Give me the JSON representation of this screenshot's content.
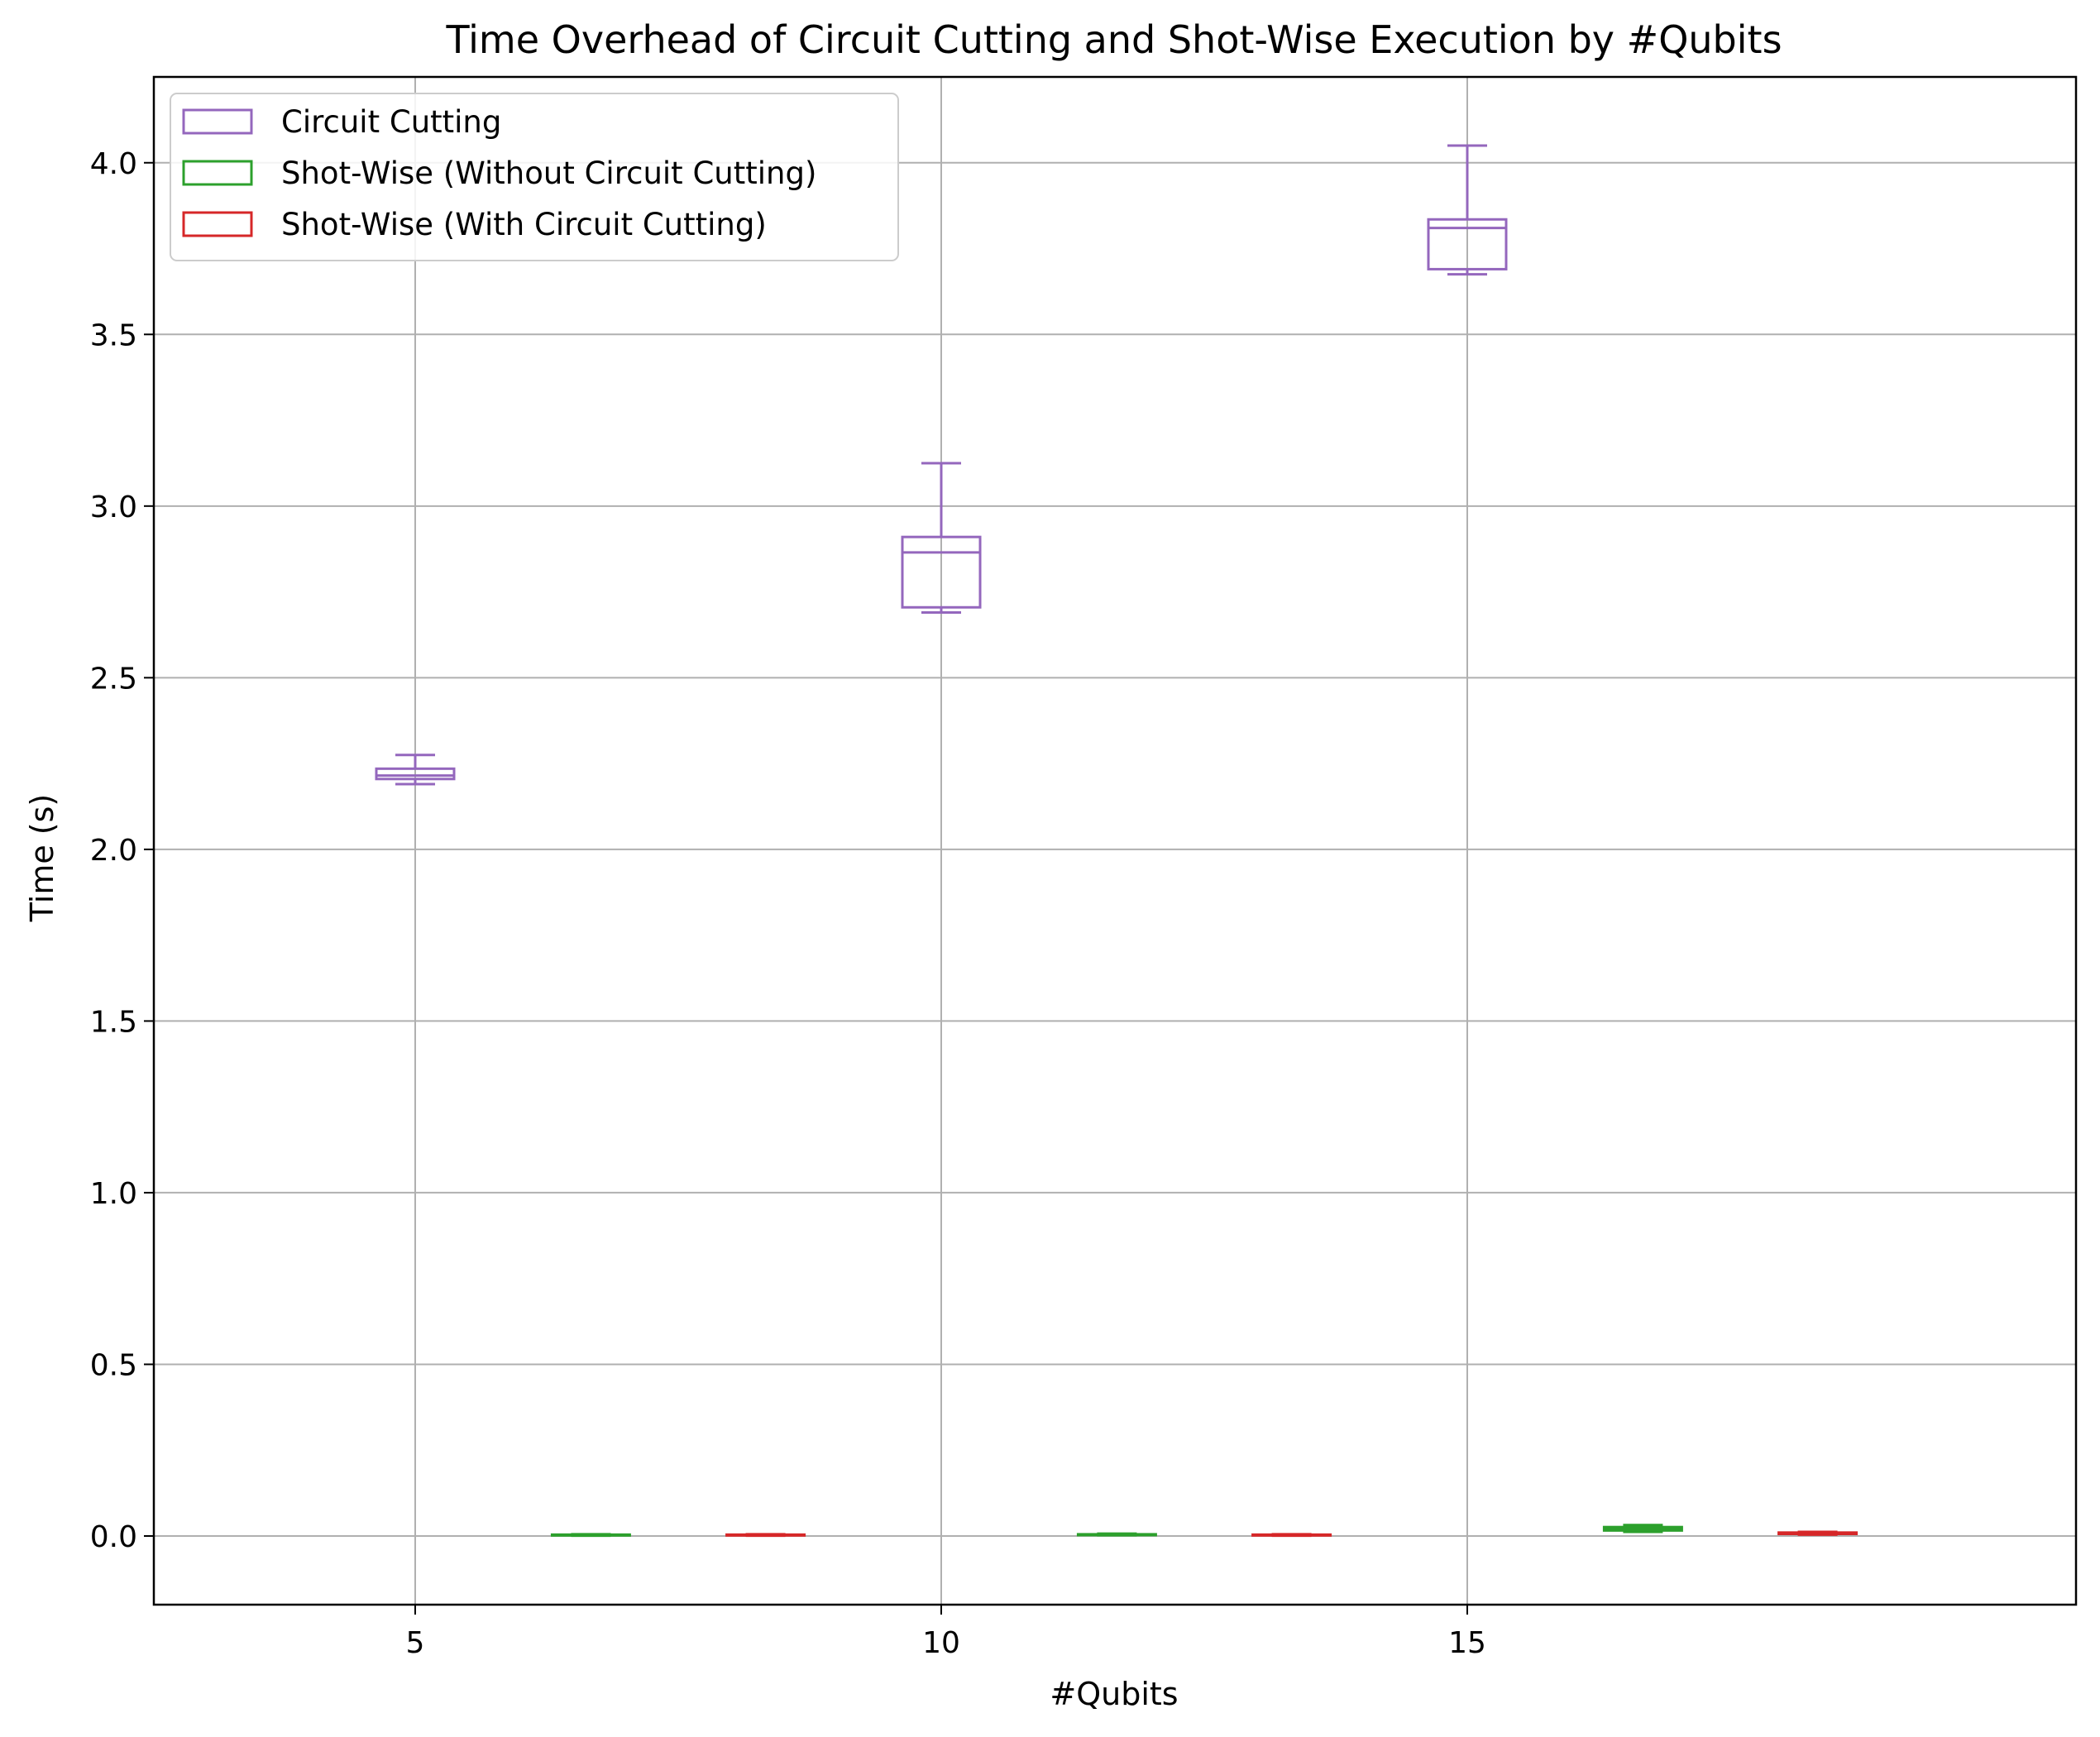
{
  "chart_data": {
    "type": "box",
    "title": "Time Overhead of Circuit Cutting and Shot-Wise Execution by #Qubits",
    "xlabel": "#Qubits",
    "ylabel": "Time (s)",
    "categories": [
      "5",
      "10",
      "15"
    ],
    "xlim": [
      2.5,
      20.83
    ],
    "ylim": [
      -0.2,
      4.25
    ],
    "yticks": [
      0.0,
      0.5,
      1.0,
      1.5,
      2.0,
      2.5,
      3.0,
      3.5,
      4.0
    ],
    "ytick_labels": [
      "0.0",
      "0.5",
      "1.0",
      "1.5",
      "2.0",
      "2.5",
      "3.0",
      "3.5",
      "4.0"
    ],
    "grid": true,
    "legend_position": "top-left",
    "series": [
      {
        "name": "Circuit Cutting",
        "color": "#9467bd",
        "positions": [
          5,
          10,
          15
        ],
        "boxes": [
          {
            "whislo": 2.19,
            "q1": 2.205,
            "med": 2.215,
            "q3": 2.235,
            "whishi": 2.275
          },
          {
            "whislo": 2.69,
            "q1": 2.705,
            "med": 2.865,
            "q3": 2.91,
            "whishi": 3.125
          },
          {
            "whislo": 3.675,
            "q1": 3.69,
            "med": 3.81,
            "q3": 3.835,
            "whishi": 4.05
          }
        ]
      },
      {
        "name": "Shot-Wise (Without Circuit Cutting)",
        "color": "#2ca02c",
        "positions": [
          6.67,
          11.67,
          16.67
        ],
        "boxes": [
          {
            "whislo": 0.001,
            "q1": 0.002,
            "med": 0.003,
            "q3": 0.004,
            "whishi": 0.005
          },
          {
            "whislo": 0.002,
            "q1": 0.003,
            "med": 0.004,
            "q3": 0.005,
            "whishi": 0.007
          },
          {
            "whislo": 0.012,
            "q1": 0.016,
            "med": 0.021,
            "q3": 0.026,
            "whishi": 0.032
          }
        ]
      },
      {
        "name": "Shot-Wise (With Circuit Cutting)",
        "color": "#d62728",
        "positions": [
          8.33,
          13.33,
          18.33
        ],
        "boxes": [
          {
            "whislo": 0.001,
            "q1": 0.002,
            "med": 0.003,
            "q3": 0.004,
            "whishi": 0.005
          },
          {
            "whislo": 0.001,
            "q1": 0.002,
            "med": 0.003,
            "q3": 0.004,
            "whishi": 0.005
          },
          {
            "whislo": 0.004,
            "q1": 0.006,
            "med": 0.008,
            "q3": 0.01,
            "whishi": 0.012
          }
        ]
      }
    ]
  }
}
